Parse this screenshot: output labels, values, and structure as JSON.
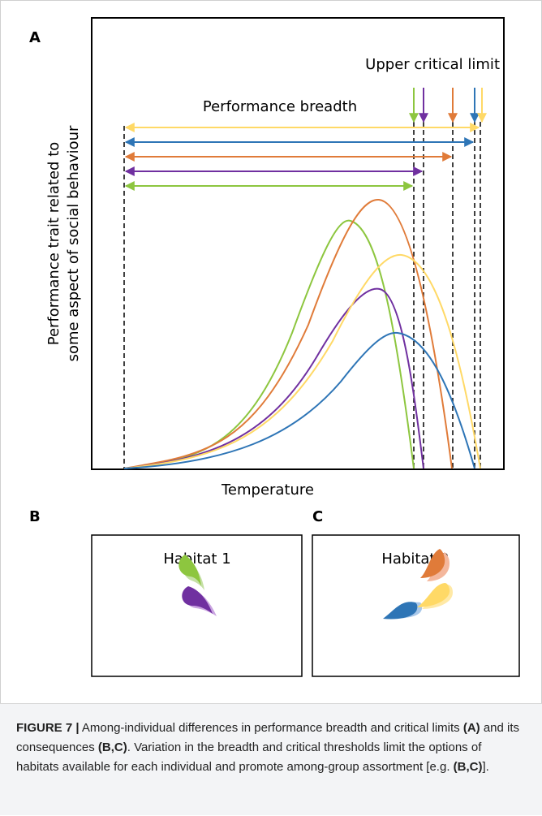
{
  "panel_a": {
    "label": "A",
    "y_axis_label": [
      "Performance trait related to",
      "some aspect of social behaviour"
    ],
    "x_axis_label": "Temperature",
    "annotation_limit": "Upper critical limit",
    "annotation_breadth": "Performance breadth"
  },
  "panel_b": {
    "label": "B",
    "title": "Habitat 1"
  },
  "panel_c": {
    "label": "C",
    "title": "Habitat 2"
  },
  "caption": {
    "segments": [
      {
        "text": "FIGURE 7 |",
        "bold": true
      },
      {
        "text": " Among-individual differences in performance breadth and critical limits ",
        "bold": false
      },
      {
        "text": "(A)",
        "bold": true
      },
      {
        "text": " and its consequences ",
        "bold": false
      },
      {
        "text": "(B,C)",
        "bold": true
      },
      {
        "text": ". Variation in the breadth and critical thresholds limit the options of habitats available for each individual and promote among-group assortment [e.g. ",
        "bold": false
      },
      {
        "text": "(B,C)",
        "bold": true
      },
      {
        "text": "].",
        "bold": false
      }
    ]
  }
}
